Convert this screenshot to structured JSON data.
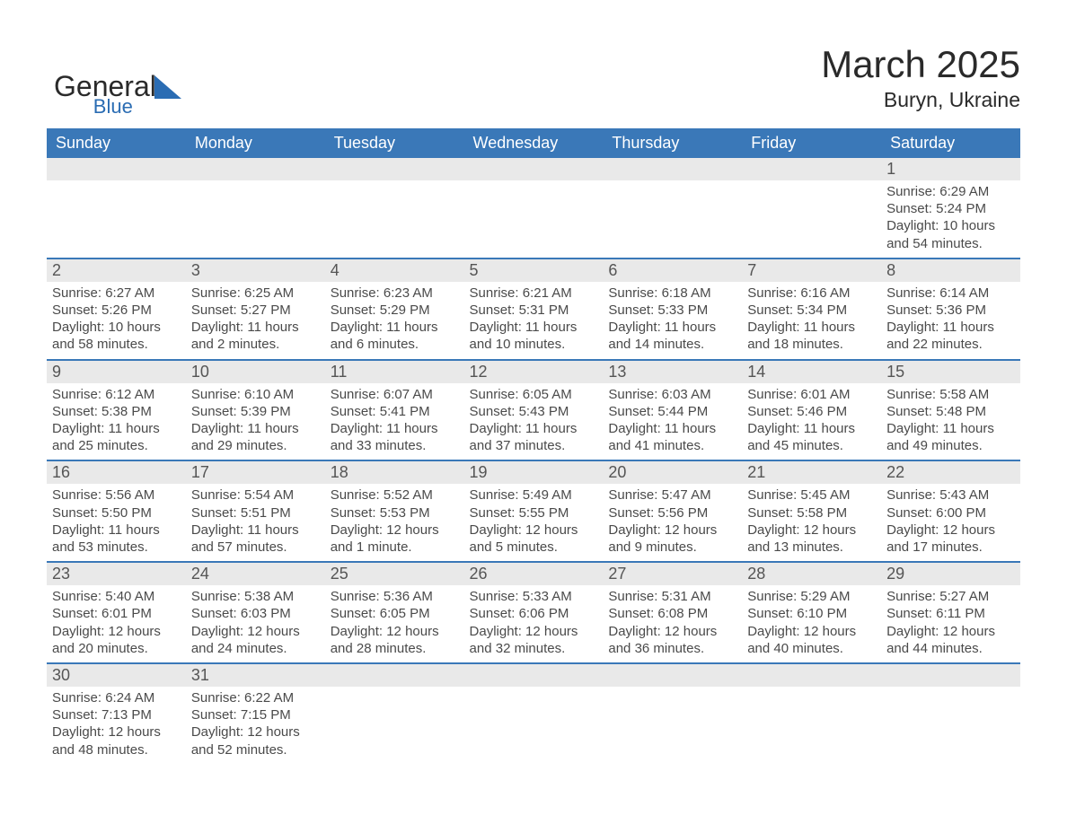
{
  "logo": {
    "general": "General",
    "blue": "Blue",
    "icon_color": "#2a6cb3"
  },
  "header": {
    "month_title": "March 2025",
    "location": "Buryn, Ukraine"
  },
  "colors": {
    "header_bg": "#3a78b8",
    "header_text": "#ffffff",
    "daynum_bg": "#e9e9e9",
    "row_border": "#3a78b8",
    "body_text": "#4a4a4a",
    "title_text": "#2a2a2a",
    "bg": "#ffffff"
  },
  "days_of_week": [
    "Sunday",
    "Monday",
    "Tuesday",
    "Wednesday",
    "Thursday",
    "Friday",
    "Saturday"
  ],
  "labels": {
    "sunrise_prefix": "Sunrise: ",
    "sunset_prefix": "Sunset: ",
    "daylight_prefix": "Daylight: "
  },
  "weeks": [
    [
      null,
      null,
      null,
      null,
      null,
      null,
      {
        "n": "1",
        "sunrise": "6:29 AM",
        "sunset": "5:24 PM",
        "daylight": "10 hours and 54 minutes."
      }
    ],
    [
      {
        "n": "2",
        "sunrise": "6:27 AM",
        "sunset": "5:26 PM",
        "daylight": "10 hours and 58 minutes."
      },
      {
        "n": "3",
        "sunrise": "6:25 AM",
        "sunset": "5:27 PM",
        "daylight": "11 hours and 2 minutes."
      },
      {
        "n": "4",
        "sunrise": "6:23 AM",
        "sunset": "5:29 PM",
        "daylight": "11 hours and 6 minutes."
      },
      {
        "n": "5",
        "sunrise": "6:21 AM",
        "sunset": "5:31 PM",
        "daylight": "11 hours and 10 minutes."
      },
      {
        "n": "6",
        "sunrise": "6:18 AM",
        "sunset": "5:33 PM",
        "daylight": "11 hours and 14 minutes."
      },
      {
        "n": "7",
        "sunrise": "6:16 AM",
        "sunset": "5:34 PM",
        "daylight": "11 hours and 18 minutes."
      },
      {
        "n": "8",
        "sunrise": "6:14 AM",
        "sunset": "5:36 PM",
        "daylight": "11 hours and 22 minutes."
      }
    ],
    [
      {
        "n": "9",
        "sunrise": "6:12 AM",
        "sunset": "5:38 PM",
        "daylight": "11 hours and 25 minutes."
      },
      {
        "n": "10",
        "sunrise": "6:10 AM",
        "sunset": "5:39 PM",
        "daylight": "11 hours and 29 minutes."
      },
      {
        "n": "11",
        "sunrise": "6:07 AM",
        "sunset": "5:41 PM",
        "daylight": "11 hours and 33 minutes."
      },
      {
        "n": "12",
        "sunrise": "6:05 AM",
        "sunset": "5:43 PM",
        "daylight": "11 hours and 37 minutes."
      },
      {
        "n": "13",
        "sunrise": "6:03 AM",
        "sunset": "5:44 PM",
        "daylight": "11 hours and 41 minutes."
      },
      {
        "n": "14",
        "sunrise": "6:01 AM",
        "sunset": "5:46 PM",
        "daylight": "11 hours and 45 minutes."
      },
      {
        "n": "15",
        "sunrise": "5:58 AM",
        "sunset": "5:48 PM",
        "daylight": "11 hours and 49 minutes."
      }
    ],
    [
      {
        "n": "16",
        "sunrise": "5:56 AM",
        "sunset": "5:50 PM",
        "daylight": "11 hours and 53 minutes."
      },
      {
        "n": "17",
        "sunrise": "5:54 AM",
        "sunset": "5:51 PM",
        "daylight": "11 hours and 57 minutes."
      },
      {
        "n": "18",
        "sunrise": "5:52 AM",
        "sunset": "5:53 PM",
        "daylight": "12 hours and 1 minute."
      },
      {
        "n": "19",
        "sunrise": "5:49 AM",
        "sunset": "5:55 PM",
        "daylight": "12 hours and 5 minutes."
      },
      {
        "n": "20",
        "sunrise": "5:47 AM",
        "sunset": "5:56 PM",
        "daylight": "12 hours and 9 minutes."
      },
      {
        "n": "21",
        "sunrise": "5:45 AM",
        "sunset": "5:58 PM",
        "daylight": "12 hours and 13 minutes."
      },
      {
        "n": "22",
        "sunrise": "5:43 AM",
        "sunset": "6:00 PM",
        "daylight": "12 hours and 17 minutes."
      }
    ],
    [
      {
        "n": "23",
        "sunrise": "5:40 AM",
        "sunset": "6:01 PM",
        "daylight": "12 hours and 20 minutes."
      },
      {
        "n": "24",
        "sunrise": "5:38 AM",
        "sunset": "6:03 PM",
        "daylight": "12 hours and 24 minutes."
      },
      {
        "n": "25",
        "sunrise": "5:36 AM",
        "sunset": "6:05 PM",
        "daylight": "12 hours and 28 minutes."
      },
      {
        "n": "26",
        "sunrise": "5:33 AM",
        "sunset": "6:06 PM",
        "daylight": "12 hours and 32 minutes."
      },
      {
        "n": "27",
        "sunrise": "5:31 AM",
        "sunset": "6:08 PM",
        "daylight": "12 hours and 36 minutes."
      },
      {
        "n": "28",
        "sunrise": "5:29 AM",
        "sunset": "6:10 PM",
        "daylight": "12 hours and 40 minutes."
      },
      {
        "n": "29",
        "sunrise": "5:27 AM",
        "sunset": "6:11 PM",
        "daylight": "12 hours and 44 minutes."
      }
    ],
    [
      {
        "n": "30",
        "sunrise": "6:24 AM",
        "sunset": "7:13 PM",
        "daylight": "12 hours and 48 minutes."
      },
      {
        "n": "31",
        "sunrise": "6:22 AM",
        "sunset": "7:15 PM",
        "daylight": "12 hours and 52 minutes."
      },
      null,
      null,
      null,
      null,
      null
    ]
  ]
}
